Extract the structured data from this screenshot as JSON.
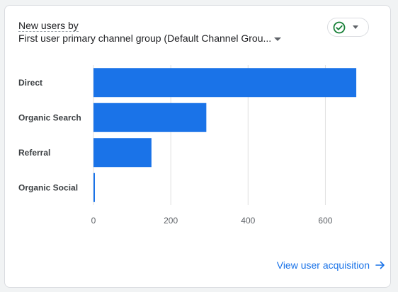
{
  "card": {
    "title_line1": "New users by",
    "title_line2": "First user primary channel group (Default Channel Grou...",
    "status_icon": "check-circle-icon",
    "link_label": "View user acquisition",
    "link_icon": "arrow-right-icon"
  },
  "colors": {
    "bar": "#1a73e8",
    "grid": "#e0e0e0",
    "check": "#188038",
    "link": "#1a73e8"
  },
  "chart_data": {
    "type": "bar",
    "orientation": "horizontal",
    "title": "New users by First user primary channel group (Default Channel Grou...",
    "categories": [
      "Direct",
      "Organic Search",
      "Referral",
      "Organic Social"
    ],
    "values": [
      680,
      292,
      150,
      3
    ],
    "xlabel": "",
    "ylabel": "",
    "xlim": [
      0,
      700
    ],
    "xticks": [
      0,
      200,
      400,
      600
    ],
    "grid": true,
    "legend": "none"
  }
}
